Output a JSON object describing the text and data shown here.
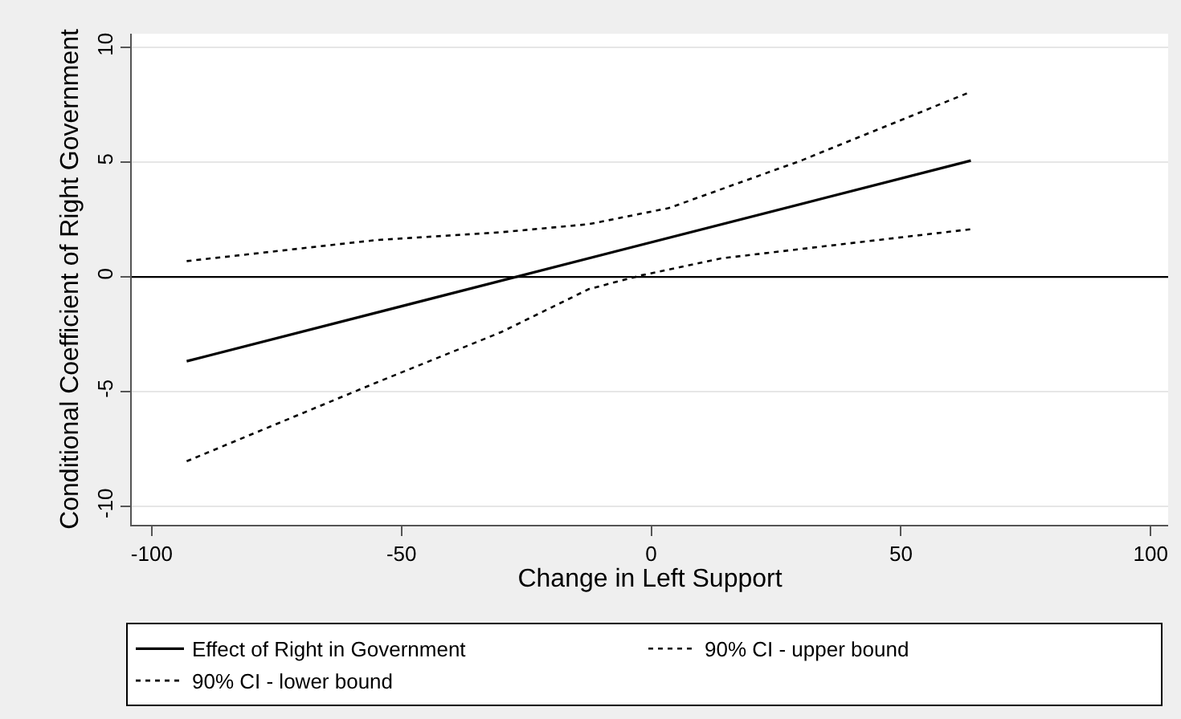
{
  "chart_data": {
    "type": "line",
    "xlabel": "Change in Left Support",
    "ylabel": "Conditional Coefficient of Right Government",
    "series": [
      {
        "name": "Effect of Right in Government",
        "color": "#000000",
        "line_style": "solid",
        "x": [
          -93,
          64
        ],
        "values": [
          -3.67,
          5.07
        ]
      },
      {
        "name": "90% CI - upper bound",
        "color": "#000000",
        "line_style": "dotted",
        "x": [
          -93,
          -55,
          -30,
          -12.5,
          3.5,
          30,
          64
        ],
        "values": [
          0.69,
          1.61,
          1.95,
          2.3,
          3.0,
          5.07,
          8.07
        ]
      },
      {
        "name": "90% CI - lower bound",
        "color": "#000000",
        "line_style": "dotted",
        "x": [
          -93,
          -55,
          -30,
          -12.5,
          -2,
          14,
          30,
          64
        ],
        "values": [
          -8.03,
          -4.6,
          -2.4,
          -0.53,
          0.07,
          0.81,
          1.22,
          2.08
        ]
      }
    ],
    "xlim": [
      -104,
      103.5
    ],
    "ylim": [
      -10.8,
      10.6
    ],
    "xticks": [
      -100,
      -50,
      0,
      50,
      100
    ],
    "yticks": [
      -10,
      -5,
      0,
      5,
      10
    ],
    "ref_lines": [
      {
        "axis": "y",
        "value": 0,
        "color": "#000000"
      }
    ],
    "grid": "y",
    "legend": "bottom",
    "marker": "none"
  }
}
